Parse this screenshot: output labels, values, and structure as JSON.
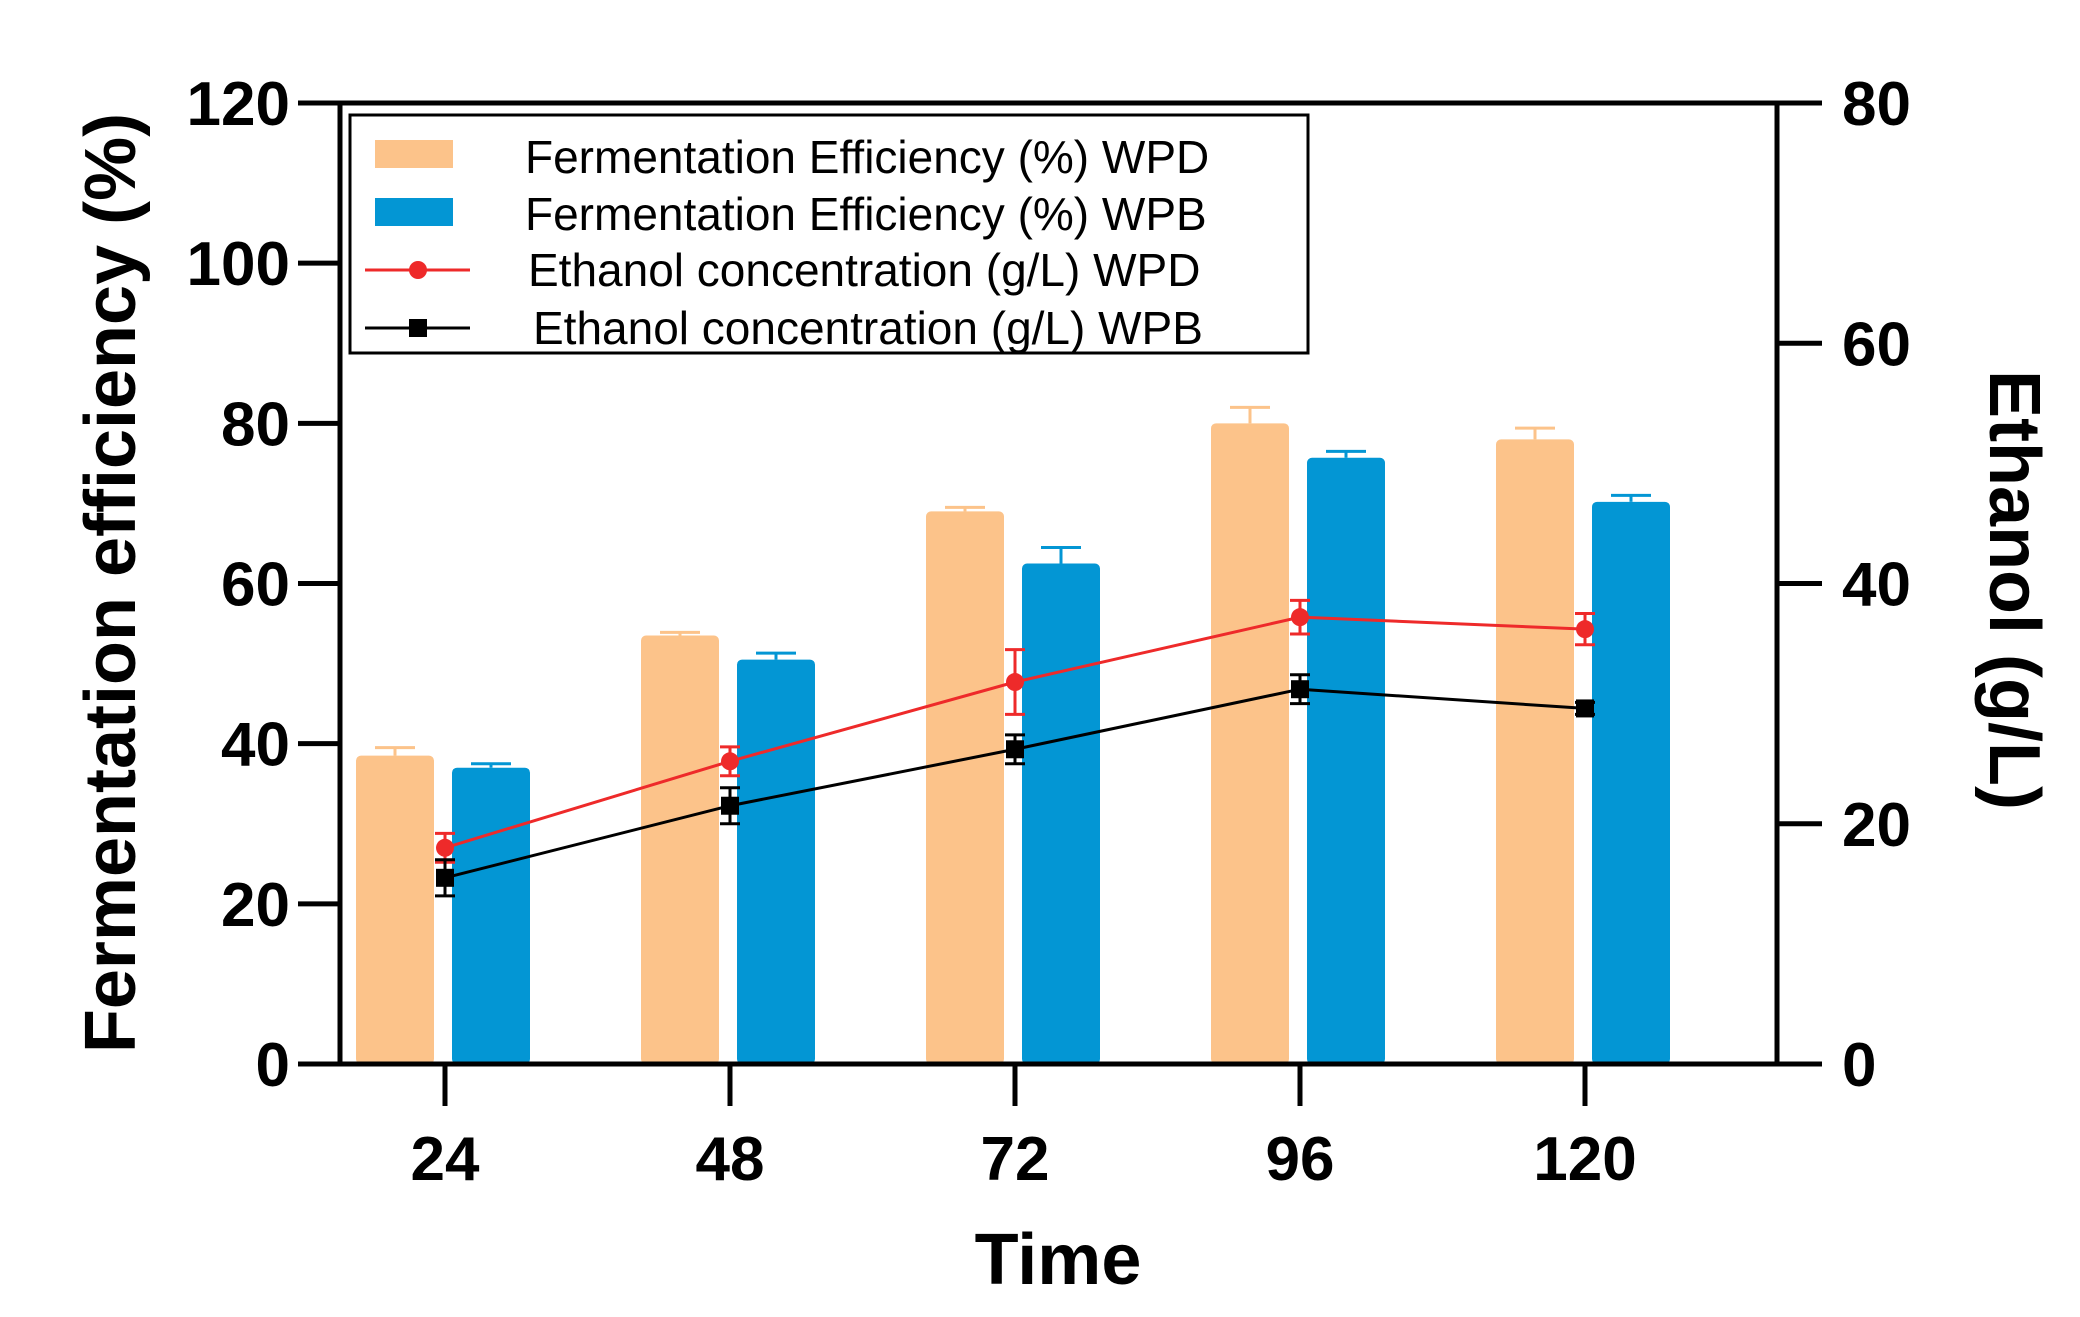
{
  "chart_data": {
    "type": "bar",
    "categories": [
      "24",
      "48",
      "72",
      "96",
      "120"
    ],
    "xlabel": "Time",
    "ylabel": "Fermentation efficiency (%)",
    "y2label": "Ethanol (g/L)",
    "ylim": [
      0,
      120
    ],
    "yticks": [
      0,
      20,
      40,
      60,
      80,
      100,
      120
    ],
    "y2lim": [
      0,
      80
    ],
    "y2ticks": [
      0,
      20,
      40,
      60,
      80
    ],
    "legend_position": "top-left",
    "bar_series": [
      {
        "name": "Fermentation Efficiency (%) WPD",
        "color": "#FCC38A",
        "values": [
          38.5,
          53.5,
          69.0,
          80.0,
          78.0
        ],
        "errors": [
          1.0,
          0.4,
          0.5,
          2.0,
          1.4
        ]
      },
      {
        "name": "Fermentation Efficiency (%) WPB",
        "color": "#0396D4",
        "values": [
          37.0,
          50.5,
          62.5,
          75.7,
          70.2
        ],
        "errors": [
          0.5,
          0.8,
          2.0,
          0.8,
          0.8
        ]
      }
    ],
    "line_series": [
      {
        "name": "Ethanol concentration (g/L) WPD",
        "color": "#EE2A2A",
        "marker": "circle",
        "values": [
          18.0,
          25.2,
          31.8,
          37.2,
          36.2
        ],
        "errors": [
          1.2,
          1.2,
          2.7,
          1.4,
          1.3
        ]
      },
      {
        "name": "Ethanol concentration (g/L) WPB",
        "color": "#000000",
        "marker": "square",
        "values": [
          15.5,
          21.5,
          26.2,
          31.2,
          29.6
        ],
        "errors": [
          1.5,
          1.5,
          1.2,
          1.2,
          0.5
        ]
      }
    ]
  }
}
